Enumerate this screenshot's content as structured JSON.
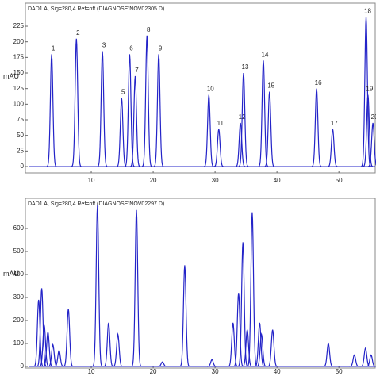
{
  "chart_data": [
    {
      "type": "chromatogram",
      "title": "DAD1 A, Sig=280,4 Ref=off (DIAGNOSE\\NOV02305.D)",
      "y_label": "mAU",
      "xlim": [
        0,
        56
      ],
      "xticks": [
        10,
        20,
        30,
        40,
        50
      ],
      "ylim": [
        0,
        260
      ],
      "yticks": [
        0,
        25,
        50,
        75,
        100,
        125,
        150,
        175,
        200,
        225
      ],
      "color": "#2323c8",
      "x": [
        3.6,
        7.6,
        11.8,
        14.9,
        16.2,
        17.1,
        19.0,
        20.9,
        29.0,
        30.6,
        34.1,
        34.6,
        37.8,
        38.8,
        46.4,
        49.0,
        54.4,
        54.7,
        55.5
      ],
      "values": [
        180,
        205,
        185,
        110,
        180,
        145,
        210,
        180,
        115,
        60,
        70,
        150,
        170,
        120,
        125,
        60,
        240,
        115,
        70
      ],
      "peak_labels": [
        "1",
        "2",
        "3",
        "5",
        "6",
        "7",
        "8",
        "9",
        "10",
        "11",
        "12",
        "13",
        "14",
        "15",
        "16",
        "17",
        "18",
        "19",
        "20"
      ]
    },
    {
      "type": "chromatogram",
      "title": "DAD1 A, Sig=280,4 Ref=off (DIAGNOSE\\NOV02297.D)",
      "y_label": "mAU",
      "xlim": [
        0,
        56
      ],
      "xticks": [
        10,
        20,
        30,
        40,
        50
      ],
      "ylim": [
        0,
        730
      ],
      "yticks": [
        0,
        100,
        200,
        300,
        400,
        500,
        600
      ],
      "color": "#2323c8",
      "x": [
        1.5,
        2.0,
        2.4,
        3.0,
        3.8,
        4.8,
        6.3,
        11.0,
        12.8,
        14.3,
        17.3,
        21.5,
        25.1,
        29.5,
        32.9,
        33.8,
        34.5,
        35.2,
        36.0,
        37.2,
        37.5,
        39.3,
        48.3,
        52.5,
        54.3,
        55.2
      ],
      "values": [
        290,
        340,
        180,
        150,
        95,
        70,
        250,
        700,
        190,
        140,
        680,
        20,
        440,
        30,
        190,
        320,
        540,
        160,
        670,
        190,
        140,
        160,
        100,
        50,
        80,
        50
      ]
    }
  ]
}
